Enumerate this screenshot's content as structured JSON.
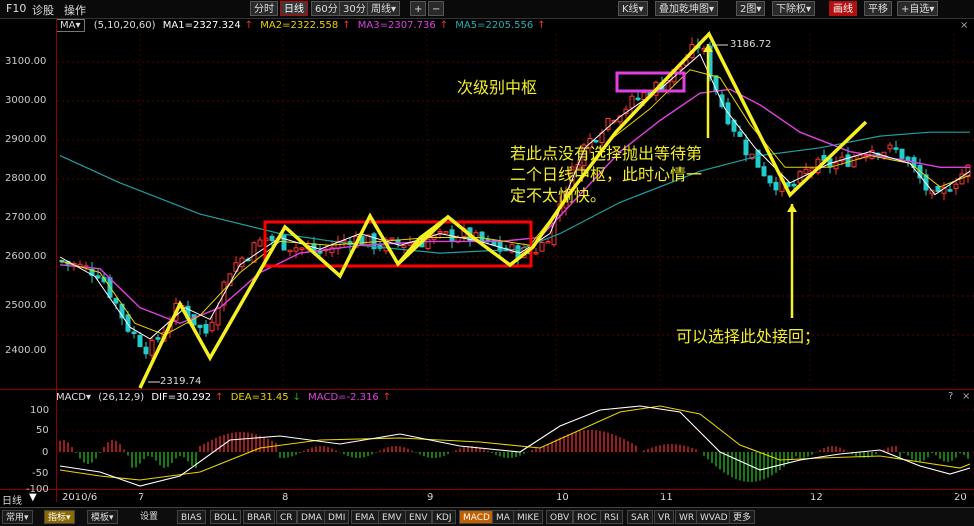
{
  "topbar": {
    "left_labels": [
      "F10",
      "诊股",
      "操作"
    ],
    "buttons": [
      "分时",
      "日线",
      "60分",
      "30分",
      "周线▾",
      "+",
      "−",
      "K线▾",
      "叠加乾坤图▾",
      "2图▾",
      "下除权▾",
      "画线",
      "平移",
      "+自选▾"
    ],
    "active_button": "日线"
  },
  "ma_bar": {
    "selector": "MA▾",
    "params": "(5,10,20,60)",
    "ma1": "MA1=2327.324",
    "ma2": "MA2=2322.558",
    "ma3": "MA3=2307.736",
    "ma5": "MA5=2205.556",
    "colors": {
      "ma1": "#ffffff",
      "ma2": "#e8d400",
      "ma3": "#e040e0",
      "ma5": "#20b0b0"
    }
  },
  "y_axis": {
    "labels": [
      "3100.00",
      "3000.00",
      "2900.00",
      "2800.00",
      "2700.00",
      "2600.00",
      "2500.00",
      "2400.00"
    ]
  },
  "price_notes": {
    "high": "3186.72",
    "low": "2319.74"
  },
  "annotations": {
    "sub_center": "次级别中枢",
    "tip_line1": "若此点没有选择抛出等待第",
    "tip_line2": "二个日线中枢，此时心情一",
    "tip_line3": "定不太愉快。",
    "rebuy": "可以选择此处接回；"
  },
  "macd_bar": {
    "selector": "MACD▾",
    "params": "(26,12,9)",
    "dif": "DIF=30.292",
    "dea": "DEA=31.45",
    "macd": "MACD=-2.316"
  },
  "macd_axis": {
    "labels": [
      "100",
      "50",
      "0",
      "-50",
      "-100"
    ]
  },
  "x_axis": {
    "labels": [
      "日线",
      "2010/6",
      "7",
      "8",
      "9",
      "10",
      "11",
      "12",
      "20"
    ]
  },
  "bottom_tabs": {
    "left": [
      "常用▾",
      "指标▾",
      "模板▾",
      "设置"
    ],
    "indicators": [
      "BIAS",
      "BOLL",
      "BRAR",
      "CR",
      "DMA",
      "DMI",
      "EMA",
      "EMV",
      "ENV",
      "KDJ",
      "MACD",
      "MA",
      "MIKE",
      "OBV",
      "ROC",
      "RSI",
      "SAR",
      "VR",
      "WR",
      "WVAD",
      "更多"
    ],
    "selected": "MACD"
  }
}
